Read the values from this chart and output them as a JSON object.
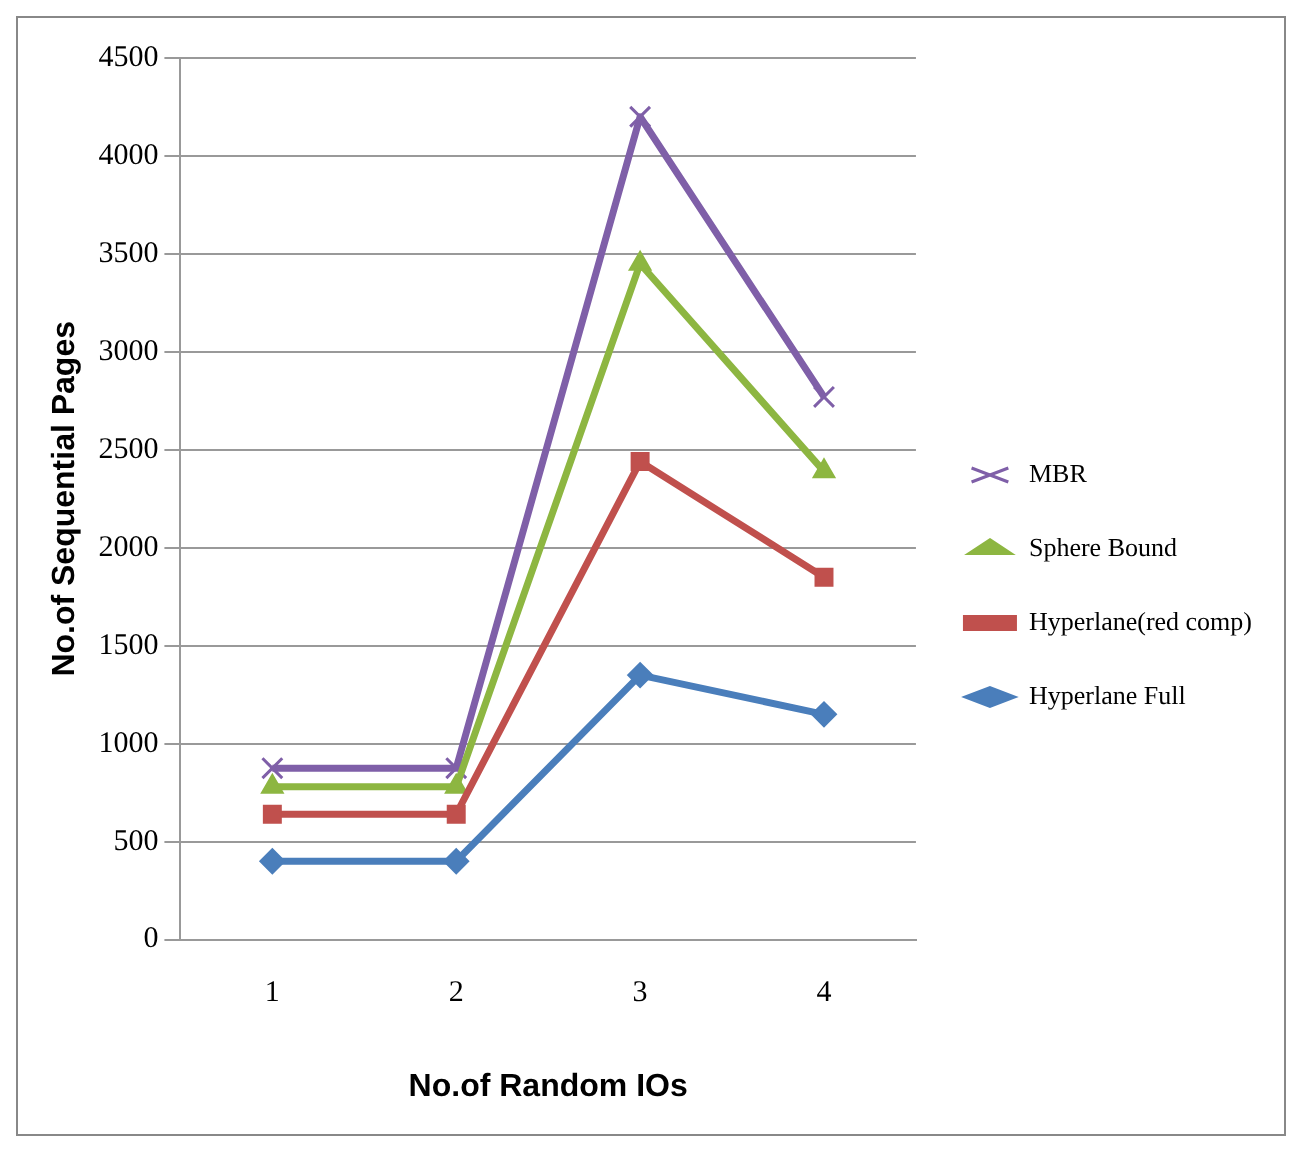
{
  "chart_data": {
    "type": "line",
    "xlabel": "No.of Random IOs",
    "ylabel": "No.of Sequential Pages",
    "categories": [
      "1",
      "2",
      "3",
      "4"
    ],
    "series": [
      {
        "name": "MBR",
        "color": "#7f5fa8",
        "marker": "cross",
        "values": [
          875,
          875,
          4200,
          2770
        ]
      },
      {
        "name": "Sphere Bound",
        "color": "#8db641",
        "marker": "triangle",
        "values": [
          780,
          780,
          3450,
          2390
        ]
      },
      {
        "name": "Hyperlane(red comp)",
        "color": "#c0504d",
        "marker": "square",
        "values": [
          640,
          640,
          2440,
          1850
        ]
      },
      {
        "name": "Hyperlane Full",
        "color": "#4a7ebb",
        "marker": "diamond",
        "values": [
          400,
          400,
          1350,
          1150
        ]
      }
    ],
    "ylim": [
      0,
      4500
    ],
    "yticks": [
      0,
      500,
      1000,
      1500,
      2000,
      2500,
      3000,
      3500,
      4000,
      4500
    ],
    "grid": "y",
    "legend": "right"
  }
}
